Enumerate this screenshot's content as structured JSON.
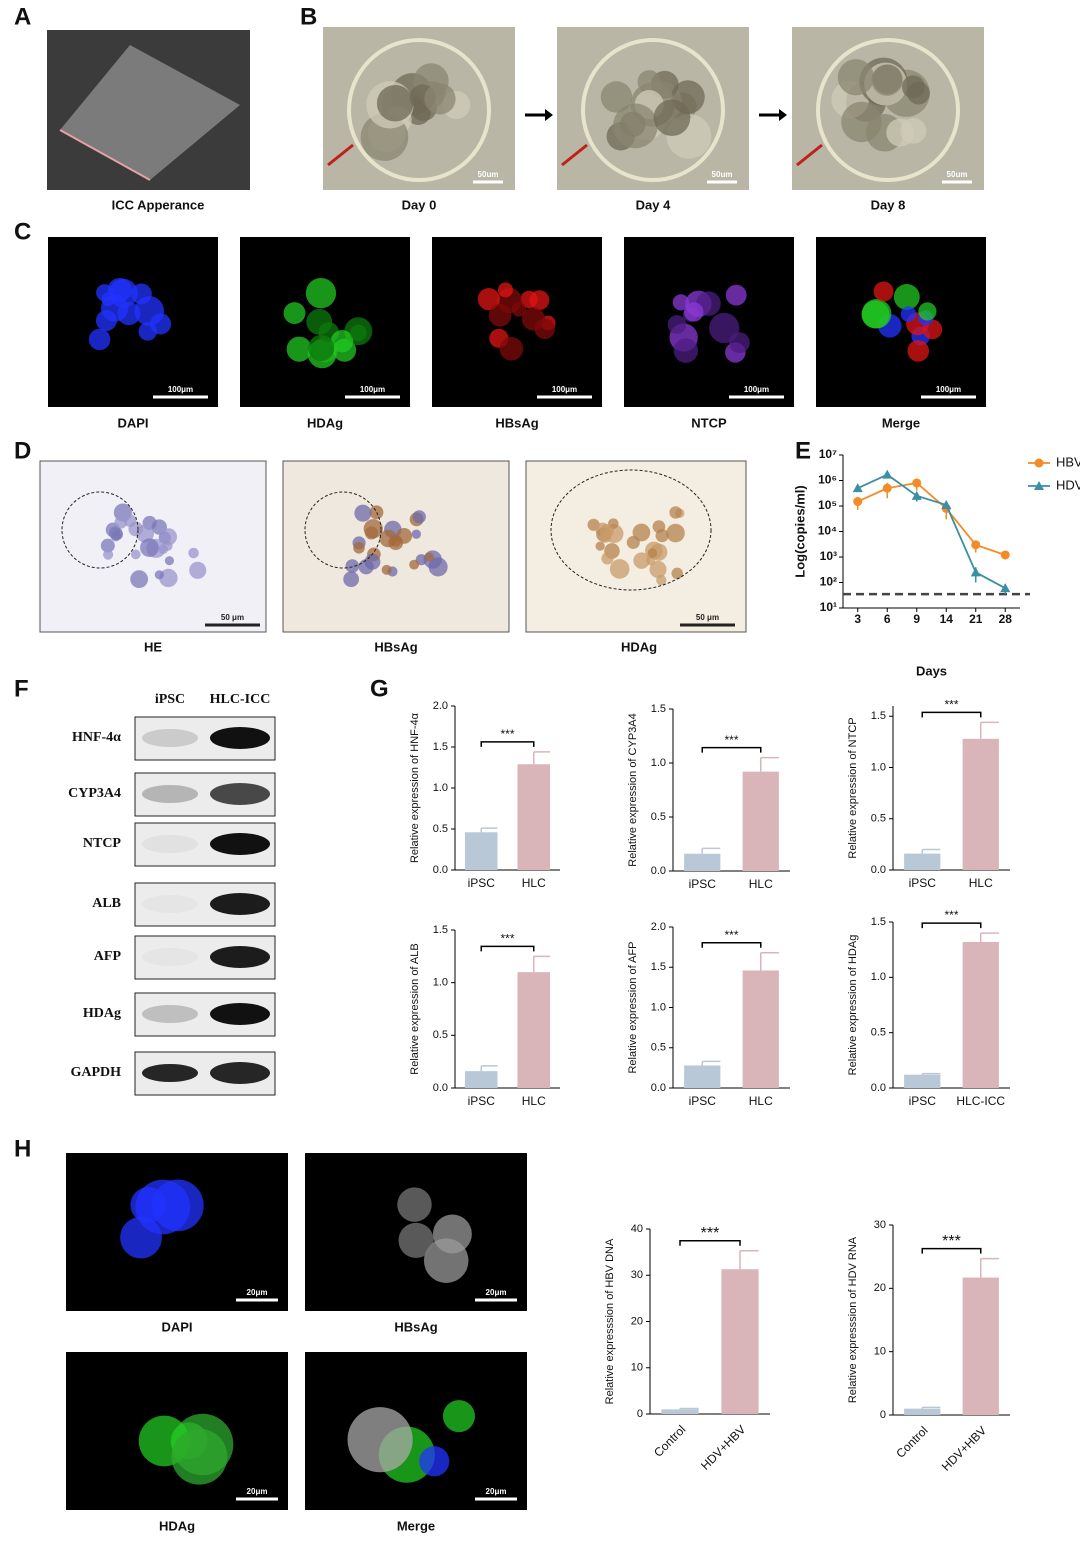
{
  "panels": {
    "A": {
      "label": "A",
      "caption": "ICC Apperance"
    },
    "B": {
      "label": "B",
      "captions": [
        "Day 0",
        "Day 4",
        "Day 8"
      ],
      "scale_bars": [
        "50um",
        "50um",
        "50um"
      ]
    },
    "C": {
      "label": "C",
      "captions": [
        "DAPI",
        "HDAg",
        "HBsAg",
        "NTCP",
        "Merge"
      ],
      "scale_bars": [
        "100μm",
        "100μm",
        "100μm",
        "100μm",
        "100μm"
      ]
    },
    "D": {
      "label": "D",
      "captions": [
        "HE",
        "HBsAg",
        "HDAg"
      ],
      "scale_bars": [
        "50 μm",
        "50 μm"
      ]
    },
    "E": {
      "label": "E"
    },
    "F": {
      "label": "F",
      "columns": [
        "iPSC",
        "HLC-ICC"
      ],
      "rows": [
        "HNF-4α",
        "CYP3A4",
        "NTCP",
        "ALB",
        "AFP",
        "HDAg",
        "GAPDH"
      ]
    },
    "G": {
      "label": "G"
    },
    "H": {
      "label": "H",
      "captions": [
        "DAPI",
        "HBsAg",
        "HDAg",
        "Merge"
      ],
      "scale_bars": [
        "20μm",
        "20μm",
        "20μm",
        "20μm"
      ]
    }
  },
  "chart_data": [
    {
      "type": "line",
      "categories": [
        "3",
        "6",
        "9",
        "14",
        "21",
        "28"
      ],
      "x_label": "Days",
      "y_label": "Log(copies/ml)",
      "log_y": true,
      "ylim": [
        10,
        10000000
      ],
      "yticks": [
        {
          "value": 10,
          "label": "10¹"
        },
        {
          "value": 100,
          "label": "10²"
        },
        {
          "value": 1000,
          "label": "10³"
        },
        {
          "value": 10000,
          "label": "10⁴"
        },
        {
          "value": 100000,
          "label": "10⁵"
        },
        {
          "value": 1000000,
          "label": "10⁶"
        },
        {
          "value": 10000000,
          "label": "10⁷"
        }
      ],
      "reference_line": 35,
      "legend": "top-right",
      "series": [
        {
          "name": "HBV",
          "color": "#f28c28",
          "marker": "circle",
          "values": [
            150000,
            500000,
            800000,
            80000,
            3000,
            1200
          ],
          "errors": [
            80000,
            300000,
            400000,
            50000,
            1500,
            400
          ]
        },
        {
          "name": "HDV",
          "color": "#3a8ea5",
          "marker": "triangle",
          "values": [
            500000,
            1700000,
            250000,
            110000,
            250,
            60
          ],
          "errors": [
            150000,
            300000,
            100000,
            20000,
            150,
            25
          ]
        }
      ]
    },
    {
      "type": "bar",
      "categories": [
        "iPSC",
        "HLC"
      ],
      "y_label": "Relative expression of HNF-4α",
      "values": [
        0.46,
        1.29
      ],
      "errors": [
        0.05,
        0.15
      ],
      "colors": [
        "#b8c8d6",
        "#d9b5b9"
      ],
      "ylim": [
        0,
        2
      ],
      "yticks": [
        {
          "value": 0,
          "label": "0.0"
        },
        {
          "value": 0.5,
          "label": "0.5"
        },
        {
          "value": 1,
          "label": "1.0"
        },
        {
          "value": 1.5,
          "label": "1.5"
        },
        {
          "value": 2,
          "label": "2.0"
        }
      ],
      "significance": "***"
    },
    {
      "type": "bar",
      "categories": [
        "iPSC",
        "HLC"
      ],
      "y_label": "Relative expression of CYP3A4",
      "values": [
        0.16,
        0.92
      ],
      "errors": [
        0.05,
        0.13
      ],
      "colors": [
        "#b8c8d6",
        "#d9b5b9"
      ],
      "ylim": [
        0,
        1.5
      ],
      "yticks": [
        {
          "value": 0,
          "label": "0.0"
        },
        {
          "value": 0.5,
          "label": "0.5"
        },
        {
          "value": 1,
          "label": "1.0"
        },
        {
          "value": 1.5,
          "label": "1.5"
        }
      ],
      "significance": "***"
    },
    {
      "type": "bar",
      "categories": [
        "iPSC",
        "HLC"
      ],
      "y_label": "Relative expression of NTCP",
      "values": [
        0.16,
        1.28
      ],
      "errors": [
        0.04,
        0.16
      ],
      "colors": [
        "#b8c8d6",
        "#d9b5b9"
      ],
      "ylim": [
        0,
        1.6
      ],
      "yticks": [
        {
          "value": 0,
          "label": "0.0"
        },
        {
          "value": 0.5,
          "label": "0.5"
        },
        {
          "value": 1,
          "label": "1.0"
        },
        {
          "value": 1.5,
          "label": "1.5"
        }
      ],
      "significance": "***"
    },
    {
      "type": "bar",
      "categories": [
        "iPSC",
        "HLC"
      ],
      "y_label": "Relative expression of ALB",
      "values": [
        0.16,
        1.1
      ],
      "errors": [
        0.05,
        0.15
      ],
      "colors": [
        "#b8c8d6",
        "#d9b5b9"
      ],
      "ylim": [
        0,
        1.5
      ],
      "yticks": [
        {
          "value": 0,
          "label": "0.0"
        },
        {
          "value": 0.5,
          "label": "0.5"
        },
        {
          "value": 1,
          "label": "1.0"
        },
        {
          "value": 1.5,
          "label": "1.5"
        }
      ],
      "significance": "***"
    },
    {
      "type": "bar",
      "categories": [
        "iPSC",
        "HLC"
      ],
      "y_label": "Relative expression of AFP",
      "values": [
        0.28,
        1.46
      ],
      "errors": [
        0.05,
        0.22
      ],
      "colors": [
        "#b8c8d6",
        "#d9b5b9"
      ],
      "ylim": [
        0,
        2
      ],
      "yticks": [
        {
          "value": 0,
          "label": "0.0"
        },
        {
          "value": 0.5,
          "label": "0.5"
        },
        {
          "value": 1,
          "label": "1.0"
        },
        {
          "value": 1.5,
          "label": "1.5"
        },
        {
          "value": 2,
          "label": "2.0"
        }
      ],
      "significance": "***"
    },
    {
      "type": "bar",
      "categories": [
        "iPSC",
        "HLC-ICC"
      ],
      "y_label": "Relative expression of HDAg",
      "values": [
        0.12,
        1.32
      ],
      "errors": [
        0.01,
        0.08
      ],
      "colors": [
        "#b8c8d6",
        "#d9b5b9"
      ],
      "ylim": [
        0,
        1.5
      ],
      "yticks": [
        {
          "value": 0,
          "label": "0.0"
        },
        {
          "value": 0.5,
          "label": "0.5"
        },
        {
          "value": 1,
          "label": "1.0"
        },
        {
          "value": 1.5,
          "label": "1.5"
        }
      ],
      "significance": "***"
    },
    {
      "type": "bar",
      "categories": [
        "Control",
        "HDV+HBV"
      ],
      "y_label": "Relative expresssion of HBV DNA",
      "values": [
        1,
        31.3
      ],
      "errors": [
        0.2,
        4
      ],
      "colors": [
        "#b8c8d6",
        "#d9b5b9"
      ],
      "ylim": [
        0,
        40
      ],
      "yticks": [
        0,
        10,
        20,
        30,
        40
      ],
      "significance": "***"
    },
    {
      "type": "bar",
      "categories": [
        "Control",
        "HDV+HBV"
      ],
      "y_label": "Relative expresssion of HDV RNA",
      "values": [
        1,
        21.7
      ],
      "errors": [
        0.2,
        3
      ],
      "colors": [
        "#b8c8d6",
        "#d9b5b9"
      ],
      "ylim": [
        0,
        30
      ],
      "yticks": [
        0,
        10,
        20,
        30
      ],
      "significance": "***"
    }
  ]
}
